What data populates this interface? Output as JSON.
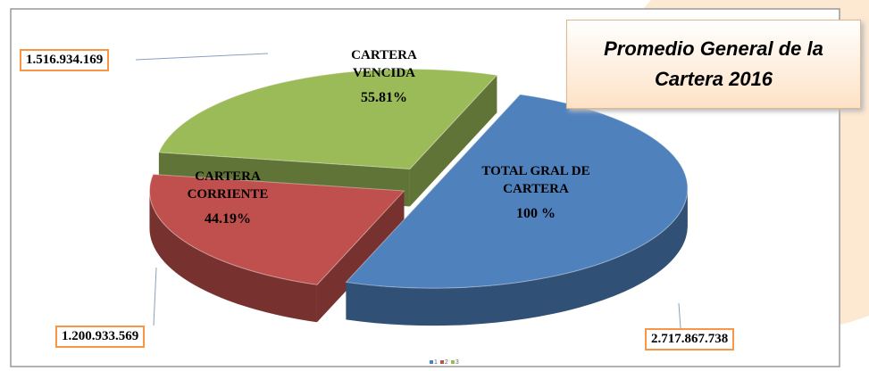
{
  "chart_data": {
    "type": "pie",
    "title": "Promedio General de la Cartera 2016",
    "categories": [
      "TOTAL GRAL DE CARTERA",
      "CARTERA CORRIENTE",
      "CARTERA VENCIDA"
    ],
    "values": [
      2717867738,
      1200933569,
      1516934169
    ],
    "value_labels": [
      "2.717.867.738",
      "1.200.933.569",
      "1.516.934.169"
    ],
    "percents": [
      100,
      44.19,
      55.81
    ],
    "percent_labels": [
      "100 %",
      "44.19%",
      "55.81%"
    ],
    "colors": [
      "#4f81bd",
      "#c0504d",
      "#9bbb59"
    ],
    "legend": [
      "1",
      "2",
      "3"
    ]
  }
}
